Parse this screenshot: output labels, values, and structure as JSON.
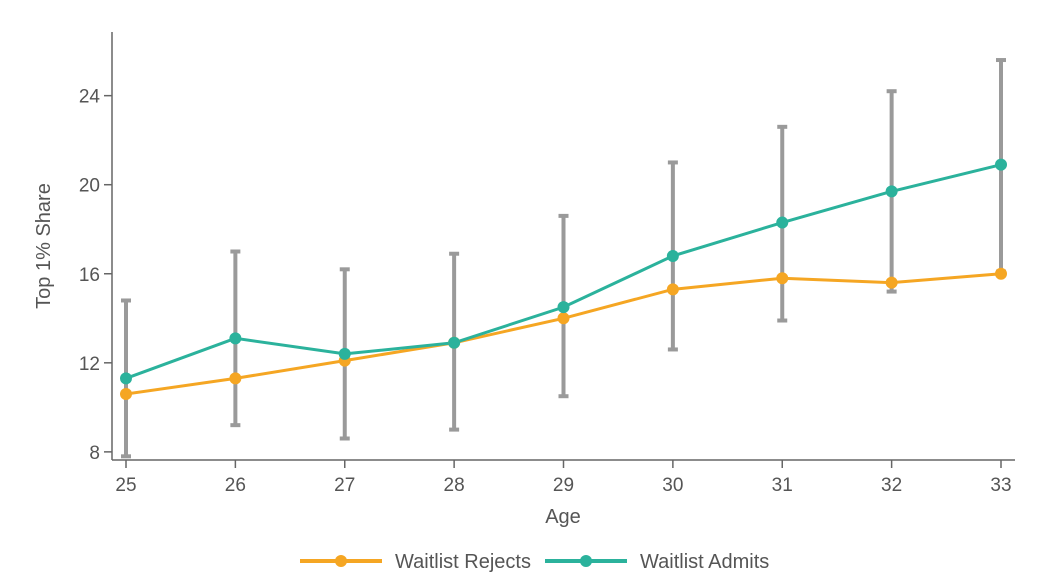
{
  "chart_data": {
    "type": "line",
    "xlabel": "Age",
    "ylabel": "Top 1% Share",
    "x": [
      25,
      26,
      27,
      28,
      29,
      30,
      31,
      32,
      33
    ],
    "xlim": [
      25,
      33
    ],
    "ylim": [
      7.5,
      26.5
    ],
    "yticks": [
      8,
      12,
      16,
      20,
      24
    ],
    "grid": false,
    "legend_position": "bottom",
    "series": [
      {
        "name": "Waitlist Rejects",
        "color": "#f5a623",
        "values": [
          10.6,
          11.3,
          12.1,
          12.9,
          14.0,
          15.3,
          15.8,
          15.6,
          16.0
        ]
      },
      {
        "name": "Waitlist Admits",
        "color": "#2bb29c",
        "values": [
          11.3,
          13.1,
          12.4,
          12.9,
          14.5,
          16.8,
          18.3,
          19.7,
          20.9
        ],
        "error_bars": {
          "color": "#9a9a9a",
          "lower": [
            7.8,
            9.2,
            8.6,
            9.0,
            10.5,
            12.6,
            13.9,
            15.2,
            16.1
          ],
          "upper": [
            14.8,
            17.0,
            16.2,
            16.9,
            18.6,
            21.0,
            22.6,
            24.2,
            25.6
          ]
        }
      }
    ]
  }
}
